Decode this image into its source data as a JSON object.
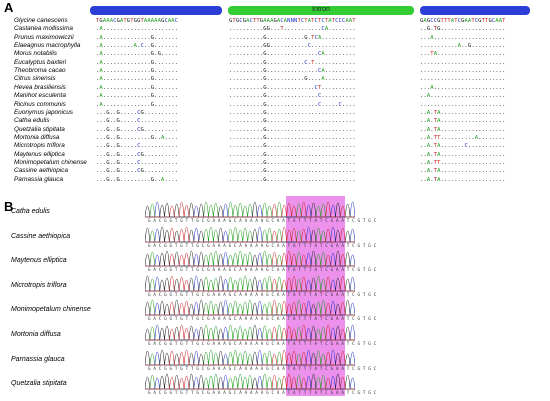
{
  "panel_a_label": "A",
  "panel_b_label": "B",
  "intron_label": "Intron",
  "colors": {
    "exon_bar": "#2b3fd8",
    "intron_bar": "#33cc33",
    "highlight": "#e66ee6",
    "A": "#1a9a1a",
    "C": "#2233cc",
    "G": "#111111",
    "T": "#cc2222"
  },
  "alignment": [
    {
      "species": "Glycine canescens",
      "seq1": "TGAAACGATGTGGTAAAAAGCAAC",
      "seq2": "GTGCGACTTGAAAGACANNNTCTATCTCTATCCCAAT",
      "seq3": "GAGCCGTTTATCGAATCGTTGCAAT"
    },
    {
      "species": "Castanea mollissima",
      "seq1": ".A......................",
      "seq2": "..........GG...T...........CA........",
      "seq3": "..G.TG..................."
    },
    {
      "species": "Prunus maximowiczii",
      "seq1": ".A..............G.......",
      "seq2": "..........G...........G.TCA..........",
      "seq3": "...A....................."
    },
    {
      "species": "Elaeagnus macrophylla",
      "seq1": ".A.........A.C..G.......",
      "seq2": "..........GG...........C.............",
      "seq3": "...........A..G.........."
    },
    {
      "species": "Morus notabilis",
      "seq1": ".A..............G.G.....",
      "seq2": "..........G...............CA.........",
      "seq3": "...TA...................."
    },
    {
      "species": "Eucalyptus baxteri",
      "seq1": ".A..............G.......",
      "seq2": "..........G...........C.T............",
      "seq3": "........................."
    },
    {
      "species": "Theobroma cacao",
      "seq1": ".A..............G.......",
      "seq2": "..........G...............CA.........",
      "seq3": "........................."
    },
    {
      "species": "Citrus sinensis",
      "seq1": ".A..............G.......",
      "seq2": "..........G...........G....A.........",
      "seq3": "........................."
    },
    {
      "species": "Hevea brasiliensis",
      "seq1": ".A..............G.......",
      "seq2": "..........G..............CT..........",
      "seq3": "...A....................."
    },
    {
      "species": "Manihot esculenta",
      "seq1": ".A..............G.......",
      "seq2": "..........G...............C..........",
      "seq3": "..A......................"
    },
    {
      "species": "Ricinus communis",
      "seq1": ".A..............G.......",
      "seq2": "..........G...............C.....C....",
      "seq3": "........................."
    },
    {
      "species": "Euonymus japonicus",
      "seq1": "...G..G.....CG..........",
      "seq2": "..........G..........................",
      "seq3": "..A.TA..................."
    },
    {
      "species": "Catha edulis",
      "seq1": "...G..G.....C...........",
      "seq2": "..........G..........................",
      "seq3": "..A.TA..................."
    },
    {
      "species": "Quetzalia stipitata",
      "seq1": "...G..G.....CG..........",
      "seq2": "..........G..........................",
      "seq3": "..A.TA..................."
    },
    {
      "species": "Mortonia diffusa",
      "seq1": "...G..G.........G..A....",
      "seq2": "..........G..........................",
      "seq3": "..A.TT..........A........"
    },
    {
      "species": "Microtropis triflora",
      "seq1": "...G..G.....C...........",
      "seq2": "..........G..........................",
      "seq3": "..A.TA.......C..........."
    },
    {
      "species": "Maytenus elliptica",
      "seq1": "...G..G.....CG..........",
      "seq2": "..........G..........................",
      "seq3": "..A.TA..................."
    },
    {
      "species": "Monimopetalum chinense",
      "seq1": "...G..G.....C...........",
      "seq2": "..........G..........................",
      "seq3": "..A.TT..................."
    },
    {
      "species": "Cassine aethiopica",
      "seq1": "...G..G.....CG..........",
      "seq2": "..........G..........................",
      "seq3": "..A.TA..................."
    },
    {
      "species": "Parnassia glauca",
      "seq1": "...G..G.........G..A....",
      "seq2": "..........G..........................",
      "seq3": "..A.TA..................."
    }
  ],
  "chromatograms": [
    {
      "species": "Catha edulis",
      "bases": "GACGGTGTTGCGAAAGCAAAAAGCAATATTTATCGAATCGTGC"
    },
    {
      "species": "Cassine aethiopica",
      "bases": "GACGGTGTTGCGAAAGCAAAAAGCAATATTTATCGAATCGTGC"
    },
    {
      "species": "Maytenus elliptica",
      "bases": "GACGGTGTTGCGAAAGCAAAAAGCAATATTTATCGAATCGTGC"
    },
    {
      "species": "Microtropis triflora",
      "bases": "GACGGTGTTGCGAAAGCAAAAAGCAATATTTATCGAATCGTGC"
    },
    {
      "species": "Monimopetalum chinense",
      "bases": "GACGGTGTTGCGAAAGCAAAAAGCAATATTTATCGAATCGTGC"
    },
    {
      "species": "Mortonia diffusa",
      "bases": "GACGGTGTTGCGAAAGCAAAAAGCAATATTTATCGAATCGTGC"
    },
    {
      "species": "Parnassia glauca",
      "bases": "GACGGTGTTGCGAAAGCAAAAAGCAATATTTATCGAATCGTGC"
    },
    {
      "species": "Quetzalia stipitata",
      "bases": "GACGGTGTTGCGAAAGCAAAAAGCAATATTTATCGAATCGTGC"
    }
  ]
}
